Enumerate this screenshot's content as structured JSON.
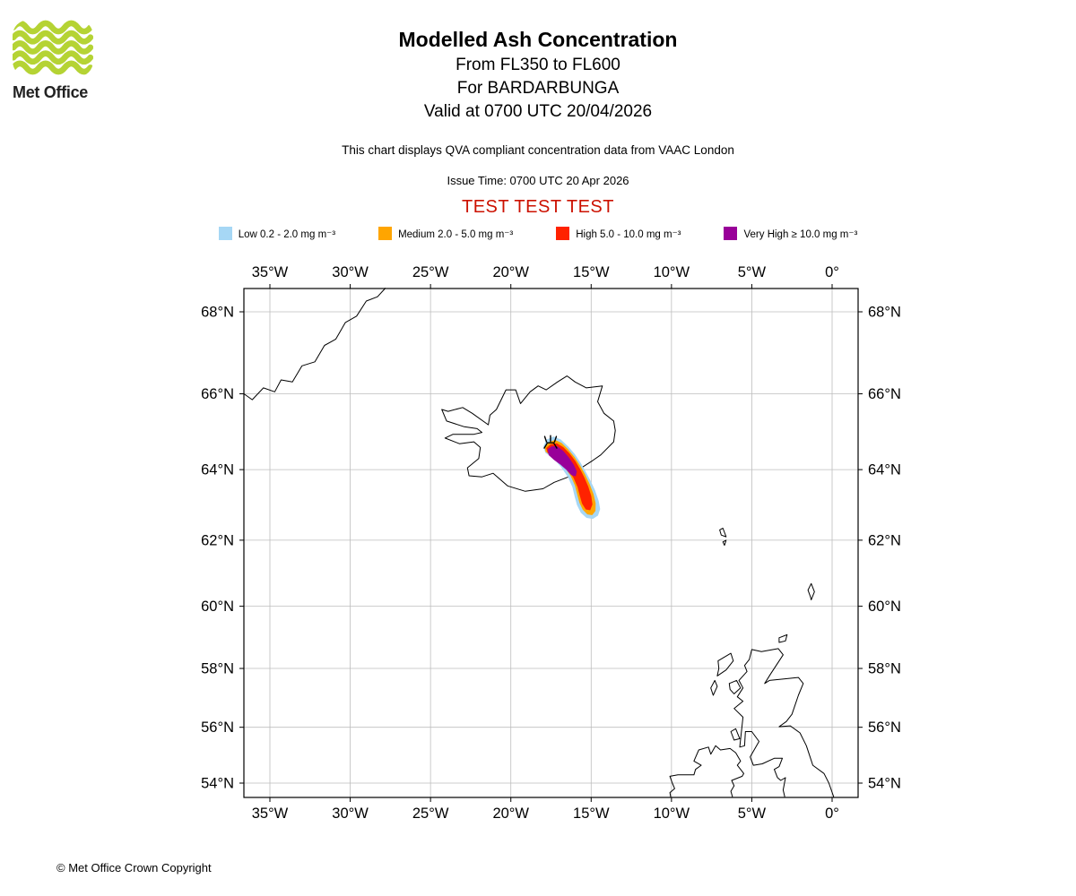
{
  "page": {
    "footer": "© Met Office Crown Copyright"
  },
  "logo": {
    "text": "Met Office",
    "wave_color": "#b5d334"
  },
  "header": {
    "title": "Modelled Ash Concentration",
    "subtitle1": "From FL350 to FL600",
    "subtitle2": "For BARDARBUNGA",
    "subtitle3": "Valid at 0700 UTC 20/04/2026",
    "note": "This chart displays QVA compliant concentration data from VAAC London",
    "issue_time": "Issue Time: 0700 UTC 20 Apr 2026",
    "test_banner": "TEST TEST TEST",
    "test_color": "#cc1100"
  },
  "legend": {
    "items": [
      {
        "label": "Low 0.2 - 2.0 mg m⁻³",
        "color": "#a6d7f5"
      },
      {
        "label": "Medium 2.0 - 5.0 mg m⁻³",
        "color": "#ffa500"
      },
      {
        "label": "High 5.0 - 10.0 mg m⁻³",
        "color": "#ff2200"
      },
      {
        "label": "Very High ≥ 10.0 mg m⁻³",
        "color": "#990099"
      }
    ]
  },
  "chart_data": {
    "type": "map",
    "projection": "mercator",
    "extent": {
      "lon_min": -36.62,
      "lon_max": 1.62,
      "lat_min": 53.49,
      "lat_max": 68.55
    },
    "grid": true,
    "lon_ticks": [
      {
        "value": -35,
        "label": "35°W"
      },
      {
        "value": -30,
        "label": "30°W"
      },
      {
        "value": -25,
        "label": "25°W"
      },
      {
        "value": -20,
        "label": "20°W"
      },
      {
        "value": -15,
        "label": "15°W"
      },
      {
        "value": -10,
        "label": "10°W"
      },
      {
        "value": -5,
        "label": "5°W"
      },
      {
        "value": 0,
        "label": "0°"
      }
    ],
    "lat_ticks": [
      {
        "value": 68,
        "label": "68°N"
      },
      {
        "value": 66,
        "label": "66°N"
      },
      {
        "value": 64,
        "label": "64°N"
      },
      {
        "value": 62,
        "label": "62°N"
      },
      {
        "value": 60,
        "label": "60°N"
      },
      {
        "value": 58,
        "label": "58°N"
      },
      {
        "value": 56,
        "label": "56°N"
      },
      {
        "value": 54,
        "label": "54°N"
      }
    ],
    "volcano": {
      "name": "BARDARBUNGA",
      "lon": -17.53,
      "lat": 64.63
    },
    "flight_levels": "FL350 to FL600",
    "valid_time": "0700 UTC 20/04/2026",
    "ash_contours": [
      {
        "level": "Low",
        "threshold": "0.2 - 2.0 mg m⁻³",
        "color": "#a6d7f5",
        "points": [
          [
            -17.95,
            64.62
          ],
          [
            -17.75,
            64.8
          ],
          [
            -17.35,
            64.88
          ],
          [
            -16.9,
            64.8
          ],
          [
            -16.45,
            64.62
          ],
          [
            -16.05,
            64.42
          ],
          [
            -15.68,
            64.18
          ],
          [
            -15.38,
            63.95
          ],
          [
            -15.08,
            63.7
          ],
          [
            -14.78,
            63.42
          ],
          [
            -14.55,
            63.12
          ],
          [
            -14.47,
            62.9
          ],
          [
            -14.6,
            62.72
          ],
          [
            -14.9,
            62.63
          ],
          [
            -15.28,
            62.66
          ],
          [
            -15.62,
            62.8
          ],
          [
            -15.86,
            63.02
          ],
          [
            -16.0,
            63.25
          ],
          [
            -16.14,
            63.52
          ],
          [
            -16.42,
            63.8
          ],
          [
            -16.85,
            64.08
          ],
          [
            -17.35,
            64.32
          ],
          [
            -17.82,
            64.46
          ]
        ]
      },
      {
        "level": "Medium",
        "threshold": "2.0 - 5.0 mg m⁻³",
        "color": "#ffa500",
        "points": [
          [
            -17.85,
            64.6
          ],
          [
            -17.62,
            64.73
          ],
          [
            -17.25,
            64.79
          ],
          [
            -16.85,
            64.71
          ],
          [
            -16.45,
            64.54
          ],
          [
            -16.05,
            64.33
          ],
          [
            -15.7,
            64.1
          ],
          [
            -15.4,
            63.86
          ],
          [
            -15.12,
            63.6
          ],
          [
            -14.88,
            63.32
          ],
          [
            -14.75,
            63.06
          ],
          [
            -14.76,
            62.85
          ],
          [
            -14.95,
            62.74
          ],
          [
            -15.22,
            62.76
          ],
          [
            -15.5,
            62.89
          ],
          [
            -15.7,
            63.08
          ],
          [
            -15.84,
            63.32
          ],
          [
            -15.99,
            63.57
          ],
          [
            -16.24,
            63.82
          ],
          [
            -16.6,
            64.06
          ],
          [
            -17.05,
            64.26
          ],
          [
            -17.5,
            64.41
          ],
          [
            -17.81,
            64.49
          ]
        ]
      },
      {
        "level": "High",
        "threshold": "5.0 - 10.0 mg m⁻³",
        "color": "#ff2200",
        "points": [
          [
            -17.76,
            64.58
          ],
          [
            -17.52,
            64.67
          ],
          [
            -17.15,
            64.7
          ],
          [
            -16.76,
            64.6
          ],
          [
            -16.36,
            64.43
          ],
          [
            -16.0,
            64.22
          ],
          [
            -15.7,
            64.0
          ],
          [
            -15.44,
            63.77
          ],
          [
            -15.2,
            63.52
          ],
          [
            -15.02,
            63.27
          ],
          [
            -14.95,
            63.03
          ],
          [
            -15.08,
            62.88
          ],
          [
            -15.32,
            62.9
          ],
          [
            -15.54,
            63.06
          ],
          [
            -15.68,
            63.28
          ],
          [
            -15.82,
            63.52
          ],
          [
            -16.06,
            63.77
          ],
          [
            -16.4,
            64.0
          ],
          [
            -16.85,
            64.2
          ],
          [
            -17.32,
            64.35
          ],
          [
            -17.68,
            64.45
          ]
        ]
      },
      {
        "level": "Very High",
        "threshold": "≥ 10.0 mg m⁻³",
        "color": "#990099",
        "points": [
          [
            -17.68,
            64.55
          ],
          [
            -17.45,
            64.62
          ],
          [
            -17.1,
            64.62
          ],
          [
            -16.75,
            64.5
          ],
          [
            -16.4,
            64.32
          ],
          [
            -16.1,
            64.12
          ],
          [
            -15.92,
            63.95
          ],
          [
            -15.98,
            63.83
          ],
          [
            -16.22,
            63.86
          ],
          [
            -16.52,
            64.0
          ],
          [
            -16.88,
            64.14
          ],
          [
            -17.28,
            64.27
          ],
          [
            -17.62,
            64.4
          ]
        ]
      }
    ],
    "coastlines": [
      {
        "name": "greenland-east-coast",
        "closed": false,
        "points": [
          [
            -36.62,
            66.0
          ],
          [
            -36.1,
            65.85
          ],
          [
            -35.4,
            66.15
          ],
          [
            -34.7,
            66.05
          ],
          [
            -34.3,
            66.35
          ],
          [
            -33.6,
            66.3
          ],
          [
            -33.0,
            66.7
          ],
          [
            -32.2,
            66.8
          ],
          [
            -31.6,
            67.2
          ],
          [
            -30.9,
            67.35
          ],
          [
            -30.3,
            67.75
          ],
          [
            -29.6,
            67.9
          ],
          [
            -29.0,
            68.25
          ],
          [
            -28.3,
            68.35
          ],
          [
            -27.8,
            68.55
          ]
        ]
      },
      {
        "name": "iceland",
        "closed": true,
        "points": [
          [
            -22.6,
            63.83
          ],
          [
            -21.8,
            63.8
          ],
          [
            -21.1,
            63.9
          ],
          [
            -20.2,
            63.55
          ],
          [
            -19.1,
            63.4
          ],
          [
            -18.0,
            63.47
          ],
          [
            -17.3,
            63.65
          ],
          [
            -16.4,
            63.8
          ],
          [
            -15.6,
            64.05
          ],
          [
            -14.9,
            64.25
          ],
          [
            -14.4,
            64.4
          ],
          [
            -13.6,
            64.75
          ],
          [
            -13.5,
            65.05
          ],
          [
            -13.6,
            65.3
          ],
          [
            -14.2,
            65.5
          ],
          [
            -14.6,
            65.8
          ],
          [
            -14.3,
            66.2
          ],
          [
            -15.3,
            66.15
          ],
          [
            -16.0,
            66.3
          ],
          [
            -16.5,
            66.45
          ],
          [
            -17.1,
            66.3
          ],
          [
            -17.8,
            66.1
          ],
          [
            -18.3,
            66.2
          ],
          [
            -18.8,
            66.05
          ],
          [
            -19.4,
            65.75
          ],
          [
            -19.7,
            66.1
          ],
          [
            -20.3,
            66.1
          ],
          [
            -20.9,
            65.6
          ],
          [
            -21.3,
            65.45
          ],
          [
            -21.4,
            65.2
          ],
          [
            -22.4,
            65.5
          ],
          [
            -23.0,
            65.65
          ],
          [
            -23.9,
            65.55
          ],
          [
            -24.3,
            65.6
          ],
          [
            -24.0,
            65.3
          ],
          [
            -22.9,
            65.15
          ],
          [
            -22.1,
            65.1
          ],
          [
            -21.8,
            65.0
          ],
          [
            -22.3,
            64.95
          ],
          [
            -23.6,
            64.95
          ],
          [
            -24.1,
            64.85
          ],
          [
            -23.2,
            64.7
          ],
          [
            -22.3,
            64.75
          ],
          [
            -21.9,
            64.6
          ],
          [
            -22.0,
            64.3
          ],
          [
            -22.7,
            64.05
          ]
        ]
      },
      {
        "name": "great-britain",
        "closed": false,
        "points": [
          [
            0.1,
            53.49
          ],
          [
            -0.2,
            54.0
          ],
          [
            -0.5,
            54.35
          ],
          [
            -1.2,
            54.65
          ],
          [
            -1.4,
            55.0
          ],
          [
            -1.6,
            55.35
          ],
          [
            -2.0,
            55.8
          ],
          [
            -2.6,
            56.05
          ],
          [
            -3.3,
            56.02
          ],
          [
            -2.85,
            56.2
          ],
          [
            -2.5,
            56.45
          ],
          [
            -2.1,
            57.1
          ],
          [
            -1.8,
            57.5
          ],
          [
            -2.1,
            57.7
          ],
          [
            -3.0,
            57.65
          ],
          [
            -3.9,
            57.6
          ],
          [
            -4.2,
            57.5
          ],
          [
            -3.85,
            57.8
          ],
          [
            -3.05,
            58.45
          ],
          [
            -3.35,
            58.65
          ],
          [
            -4.4,
            58.55
          ],
          [
            -5.0,
            58.62
          ],
          [
            -5.15,
            58.3
          ],
          [
            -5.45,
            58.1
          ],
          [
            -5.3,
            57.9
          ],
          [
            -5.8,
            57.6
          ],
          [
            -5.55,
            57.35
          ],
          [
            -5.9,
            57.05
          ],
          [
            -5.55,
            56.9
          ],
          [
            -6.1,
            56.65
          ],
          [
            -5.55,
            56.35
          ],
          [
            -5.75,
            55.3
          ],
          [
            -5.45,
            55.35
          ],
          [
            -5.4,
            55.85
          ],
          [
            -5.0,
            55.85
          ],
          [
            -4.55,
            55.5
          ],
          [
            -5.1,
            54.95
          ],
          [
            -4.9,
            54.65
          ],
          [
            -4.35,
            54.7
          ],
          [
            -3.6,
            54.9
          ],
          [
            -3.1,
            54.9
          ],
          [
            -3.3,
            54.6
          ],
          [
            -3.6,
            54.5
          ],
          [
            -3.4,
            54.2
          ],
          [
            -3.2,
            54.1
          ],
          [
            -2.9,
            54.2
          ],
          [
            -3.0,
            53.9
          ],
          [
            -3.05,
            53.75
          ],
          [
            -2.95,
            53.49
          ]
        ]
      },
      {
        "name": "ireland-north",
        "closed": false,
        "points": [
          [
            -10.05,
            53.49
          ],
          [
            -10.1,
            53.65
          ],
          [
            -9.8,
            53.8
          ],
          [
            -9.95,
            54.0
          ],
          [
            -10.1,
            54.25
          ],
          [
            -9.6,
            54.3
          ],
          [
            -9.1,
            54.3
          ],
          [
            -8.6,
            54.3
          ],
          [
            -8.5,
            54.5
          ],
          [
            -8.15,
            54.65
          ],
          [
            -8.6,
            54.8
          ],
          [
            -8.45,
            55.0
          ],
          [
            -8.3,
            55.2
          ],
          [
            -7.7,
            55.3
          ],
          [
            -7.55,
            55.05
          ],
          [
            -7.25,
            55.35
          ],
          [
            -6.95,
            55.2
          ],
          [
            -6.35,
            55.25
          ],
          [
            -6.0,
            55.1
          ],
          [
            -5.7,
            54.8
          ],
          [
            -5.9,
            54.65
          ],
          [
            -5.5,
            54.35
          ],
          [
            -5.6,
            54.25
          ],
          [
            -6.25,
            54.1
          ],
          [
            -6.1,
            53.9
          ],
          [
            -6.3,
            53.7
          ],
          [
            -6.2,
            53.49
          ]
        ]
      },
      {
        "name": "lewis-harris",
        "closed": true,
        "points": [
          [
            -7.1,
            58.25
          ],
          [
            -6.3,
            58.5
          ],
          [
            -6.15,
            58.25
          ],
          [
            -6.6,
            57.95
          ],
          [
            -7.15,
            57.75
          ],
          [
            -7.05,
            58.0
          ]
        ]
      },
      {
        "name": "skye",
        "closed": true,
        "points": [
          [
            -6.4,
            57.5
          ],
          [
            -5.95,
            57.6
          ],
          [
            -5.7,
            57.35
          ],
          [
            -6.1,
            57.15
          ],
          [
            -6.35,
            57.3
          ]
        ]
      },
      {
        "name": "uists",
        "closed": true,
        "points": [
          [
            -7.3,
            57.6
          ],
          [
            -7.15,
            57.4
          ],
          [
            -7.4,
            57.1
          ],
          [
            -7.55,
            57.35
          ]
        ]
      },
      {
        "name": "islay-jura",
        "closed": true,
        "points": [
          [
            -6.3,
            55.85
          ],
          [
            -6.0,
            55.95
          ],
          [
            -5.75,
            55.6
          ],
          [
            -6.1,
            55.55
          ]
        ]
      },
      {
        "name": "orkney",
        "closed": true,
        "points": [
          [
            -3.3,
            59.0
          ],
          [
            -2.8,
            59.1
          ],
          [
            -2.9,
            58.9
          ],
          [
            -3.3,
            58.85
          ]
        ]
      },
      {
        "name": "shetland",
        "closed": true,
        "points": [
          [
            -1.3,
            60.2
          ],
          [
            -1.1,
            60.45
          ],
          [
            -1.3,
            60.7
          ],
          [
            -1.5,
            60.5
          ],
          [
            -1.35,
            60.3
          ]
        ]
      },
      {
        "name": "faroe-north",
        "closed": true,
        "points": [
          [
            -7.0,
            62.3
          ],
          [
            -6.8,
            62.35
          ],
          [
            -6.6,
            62.1
          ],
          [
            -6.9,
            62.15
          ]
        ]
      },
      {
        "name": "faroe-south",
        "closed": true,
        "points": [
          [
            -6.8,
            61.95
          ],
          [
            -6.6,
            62.0
          ],
          [
            -6.7,
            61.85
          ]
        ]
      }
    ]
  }
}
